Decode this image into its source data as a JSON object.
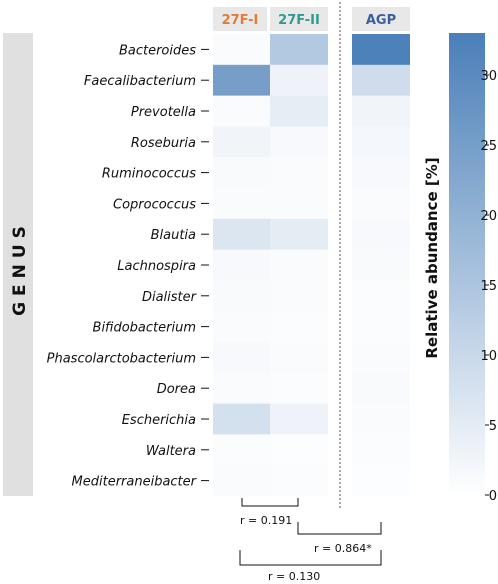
{
  "chart_data": {
    "type": "heatmap",
    "side_label": "GENUS",
    "rows": [
      "Bacteroides",
      "Faecalibacterium",
      "Prevotella",
      "Roseburia",
      "Ruminococcus",
      "Coprococcus",
      "Blautia",
      "Lachnospira",
      "Dialister",
      "Bifidobacterium",
      "Phascolarctobacterium",
      "Dorea",
      "Escherichia",
      "Waltera",
      "Mediterraneibacter"
    ],
    "columns": [
      {
        "name": "27F-I",
        "color": "#e07b39"
      },
      {
        "name": "27F-II",
        "color": "#2a9d8f"
      },
      {
        "name": "AGP",
        "color": "#3a5f9a"
      }
    ],
    "values": [
      [
        1.0,
        14.0,
        32.5
      ],
      [
        25.0,
        3.0,
        9.0
      ],
      [
        1.0,
        4.5,
        2.5
      ],
      [
        2.5,
        1.5,
        2.0
      ],
      [
        1.2,
        1.0,
        1.5
      ],
      [
        1.0,
        1.0,
        1.0
      ],
      [
        6.5,
        5.0,
        1.5
      ],
      [
        1.5,
        1.0,
        1.2
      ],
      [
        1.2,
        1.0,
        0.8
      ],
      [
        1.0,
        0.8,
        0.8
      ],
      [
        1.5,
        1.0,
        1.0
      ],
      [
        1.0,
        0.8,
        1.2
      ],
      [
        8.0,
        3.0,
        1.0
      ],
      [
        0.8,
        0.5,
        0.8
      ],
      [
        1.0,
        0.8,
        0.5
      ]
    ],
    "colorbar": {
      "label": "Relative abundance [%]",
      "min": 0,
      "max": 33,
      "ticks": [
        0,
        5,
        10,
        15,
        20,
        25,
        30
      ],
      "low_color": "#ffffff",
      "high_color": "#4a7fb8"
    },
    "correlations": [
      {
        "label": "r = 0.191",
        "from": "27F-I",
        "to": "27F-II"
      },
      {
        "label": "r = 0.864*",
        "from": "27F-II",
        "to": "AGP"
      },
      {
        "label": "r = 0.130",
        "from": "27F-I",
        "to": "AGP"
      }
    ]
  },
  "colors": {
    "header_bg": "#e8e8e8",
    "side_bar_bg": "#e0e0e0",
    "separator": "#555555"
  }
}
